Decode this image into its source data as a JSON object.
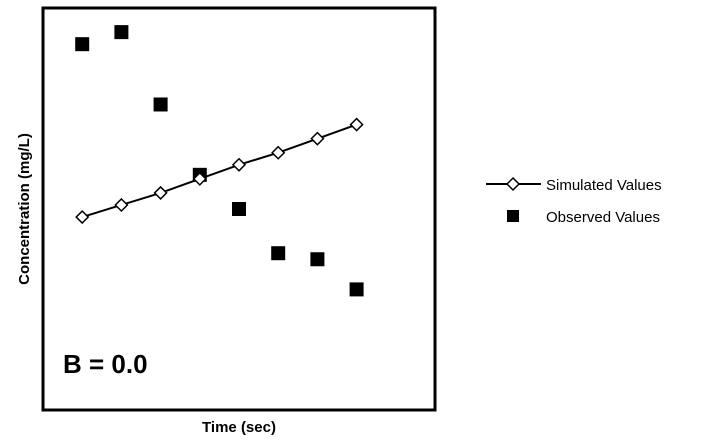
{
  "chart_data": {
    "type": "scatter",
    "title": "",
    "xlabel": "Time (sec)",
    "ylabel": "Concentration (mg/L)",
    "annotation": "B = 0.0",
    "grid": false,
    "legend_position": "right",
    "xlim": [
      0,
      10
    ],
    "ylim": [
      0,
      10
    ],
    "series": [
      {
        "name": "Simulated Values",
        "style": "line-with-open-diamond-markers",
        "color": "#000000",
        "x": [
          1,
          2,
          3,
          4,
          5,
          6,
          7,
          8
        ],
        "y": [
          4.8,
          5.1,
          5.4,
          5.75,
          6.1,
          6.4,
          6.75,
          7.1
        ]
      },
      {
        "name": "Observed Values",
        "style": "filled-square-markers",
        "color": "#000000",
        "x": [
          1,
          2,
          3,
          4,
          5,
          6,
          7,
          8
        ],
        "y": [
          9.1,
          9.4,
          7.6,
          5.85,
          5.0,
          3.9,
          3.75,
          3.0
        ]
      }
    ]
  }
}
